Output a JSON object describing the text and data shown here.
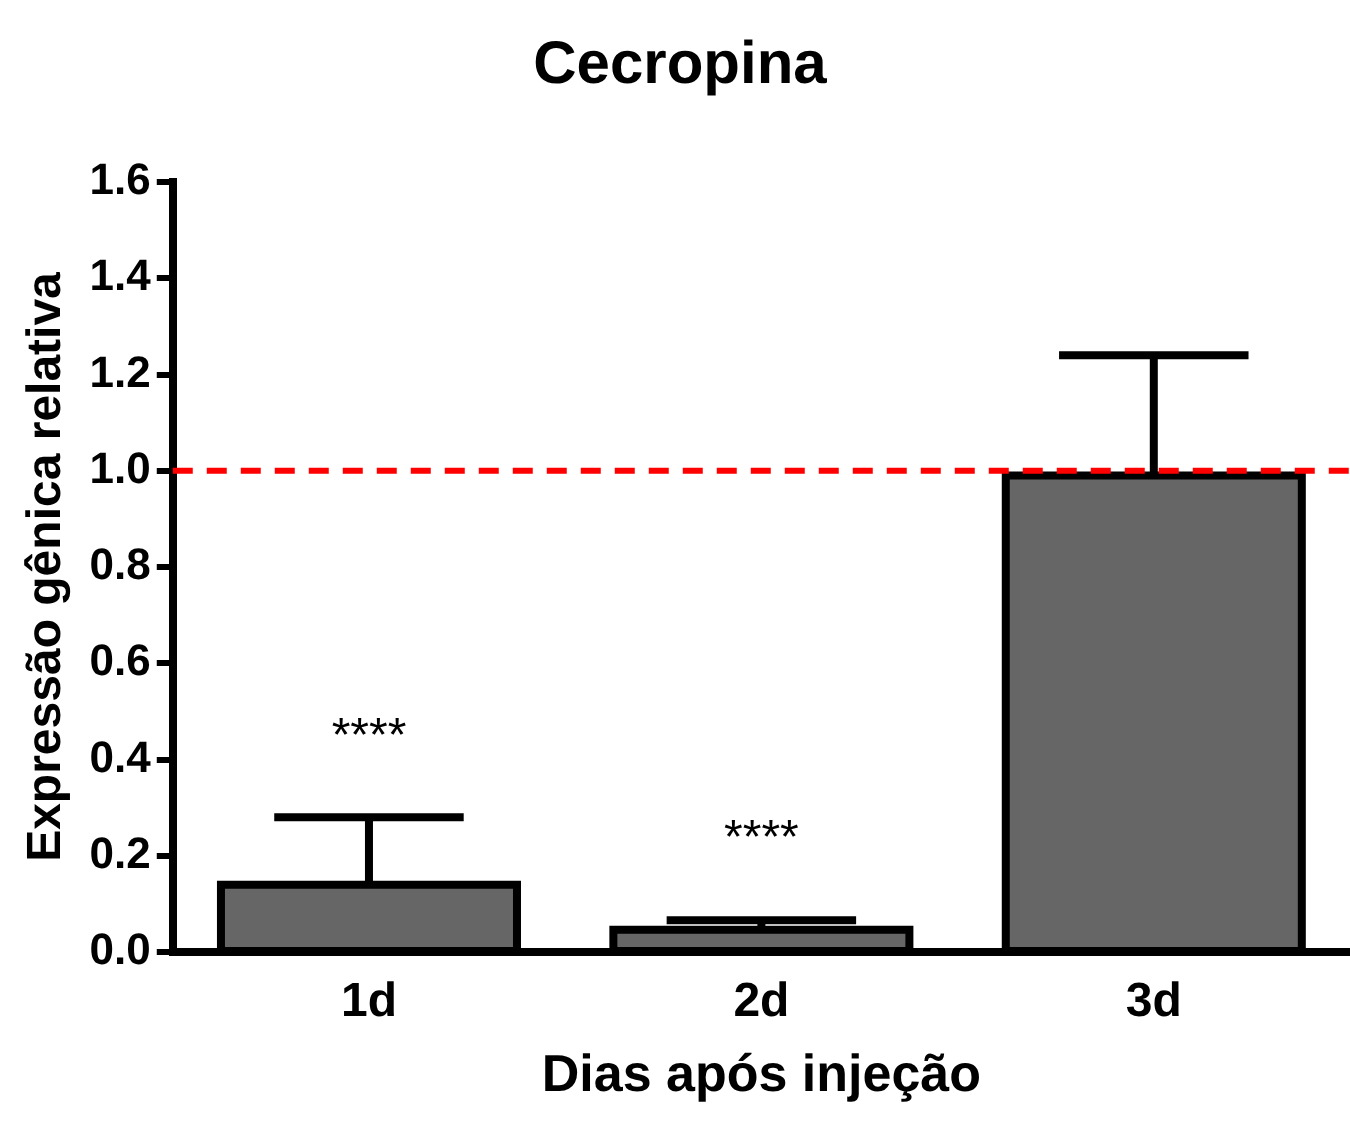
{
  "chart_data": {
    "type": "bar",
    "title": "Cecropina",
    "xlabel": "Dias após injeção",
    "ylabel": "Expressão gênica relativa",
    "categories": [
      "1d",
      "2d",
      "3d"
    ],
    "values": [
      0.14,
      0.046,
      0.99
    ],
    "errors": [
      [
        0.14,
        0.28
      ],
      [
        0.046,
        0.066
      ],
      [
        0.99,
        1.24
      ]
    ],
    "color": "#666666",
    "ylim": [
      0,
      1.6
    ],
    "yticks": [
      {
        "value": 0,
        "label": "0.0"
      },
      {
        "value": 0.2,
        "label": "0.2"
      },
      {
        "value": 0.4,
        "label": "0.4"
      },
      {
        "value": 0.6,
        "label": "0.6"
      },
      {
        "value": 0.8,
        "label": "0.8"
      },
      {
        "value": 1,
        "label": "1.0"
      },
      {
        "value": 1.2,
        "label": "1.2"
      },
      {
        "value": 1.4,
        "label": "1.4"
      },
      {
        "value": 1.6,
        "label": "1.6"
      }
    ],
    "ref_lines": [
      {
        "axis": "y",
        "value": 1,
        "color": "#ff0000",
        "line_style": "dashed"
      }
    ],
    "annotations": [
      "****",
      "****"
    ],
    "grid": false,
    "legend": false
  }
}
